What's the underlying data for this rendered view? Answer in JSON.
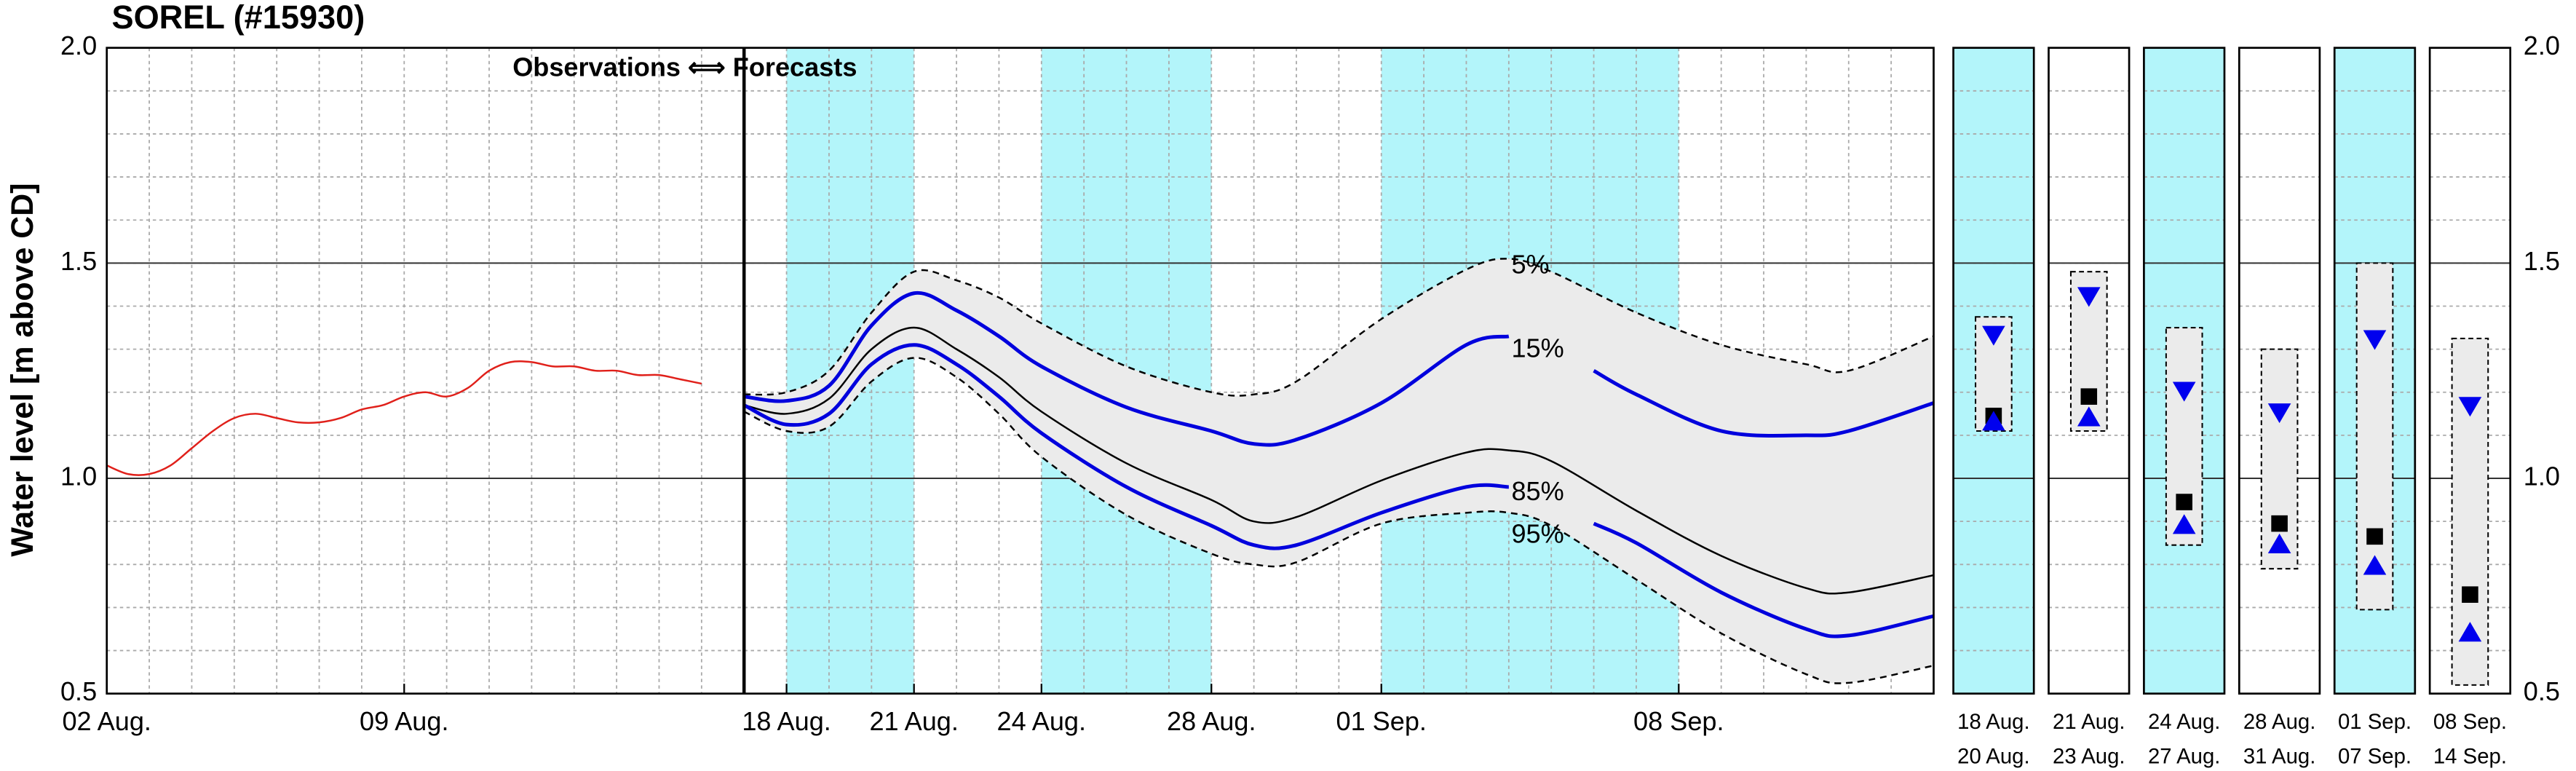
{
  "chart_data": [
    {
      "type": "line",
      "title": "SOREL (#15930)",
      "ylabel": "Water level [m above CD]",
      "annotation": "Observations ⟺ Forecasts",
      "xlim": [
        2,
        45
      ],
      "ylim": [
        0.5,
        2.0
      ],
      "xticks": [
        {
          "value": 2,
          "label": "02 Aug."
        },
        {
          "value": 9,
          "label": "09 Aug."
        },
        {
          "value": 18,
          "label": "18 Aug."
        },
        {
          "value": 21,
          "label": "21 Aug."
        },
        {
          "value": 24,
          "label": "24 Aug."
        },
        {
          "value": 28,
          "label": "28 Aug."
        },
        {
          "value": 32,
          "label": "01 Sep."
        },
        {
          "value": 39,
          "label": "08 Sep."
        }
      ],
      "yticks": [
        0.5,
        {
          "value": 1,
          "label": "1.0"
        },
        1.5,
        {
          "value": 2,
          "label": "2.0"
        }
      ],
      "grid": true,
      "minor_grid": true,
      "divider_x": 17,
      "shaded_periods": [
        [
          18,
          21
        ],
        [
          24,
          28
        ],
        [
          32,
          39
        ]
      ],
      "shade_color": "#b3f5fa",
      "band_color": "#ebebeb",
      "series": [
        {
          "color": "#e0201a",
          "x": [
            2,
            2.5,
            3,
            3.5,
            4,
            4.5,
            5,
            5.5,
            6,
            6.5,
            7,
            7.5,
            8,
            8.5,
            9,
            9.5,
            10,
            10.5,
            11,
            11.5,
            12,
            12.5,
            13,
            13.5,
            14,
            14.5,
            15,
            15.5,
            16
          ],
          "values": [
            1.03,
            1.01,
            1.01,
            1.03,
            1.07,
            1.11,
            1.14,
            1.15,
            1.14,
            1.13,
            1.13,
            1.14,
            1.16,
            1.17,
            1.19,
            1.2,
            1.19,
            1.21,
            1.25,
            1.27,
            1.27,
            1.26,
            1.26,
            1.25,
            1.25,
            1.24,
            1.24,
            1.23,
            1.22
          ]
        },
        {
          "name": "5%",
          "color": "#000000",
          "dash": true,
          "x": [
            17,
            18,
            19,
            20,
            21,
            22,
            23,
            24,
            26,
            28,
            29,
            30,
            32,
            34,
            35,
            36,
            38,
            40,
            42,
            43,
            45
          ],
          "values": [
            1.195,
            1.2,
            1.25,
            1.385,
            1.48,
            1.46,
            1.42,
            1.36,
            1.26,
            1.2,
            1.195,
            1.225,
            1.37,
            1.485,
            1.51,
            1.48,
            1.385,
            1.31,
            1.265,
            1.25,
            1.33
          ]
        },
        {
          "name": "15%",
          "color": "#0000dd",
          "x": [
            17,
            18,
            19,
            20,
            21,
            22,
            23,
            24,
            26,
            28,
            29,
            30,
            32,
            34,
            35,
            36.5,
            37,
            38,
            40,
            42,
            43,
            45
          ],
          "values": [
            1.19,
            1.18,
            1.215,
            1.355,
            1.43,
            1.39,
            1.33,
            1.26,
            1.165,
            1.11,
            1.08,
            1.09,
            1.175,
            1.31,
            1.33,
            null,
            1.25,
            1.195,
            1.11,
            1.1,
            1.11,
            1.175
          ]
        },
        {
          "color": "#000000",
          "x": [
            17,
            18,
            19,
            20,
            21,
            22,
            23,
            24,
            26,
            28,
            29,
            30,
            32,
            34,
            35,
            36,
            38,
            40,
            42,
            43,
            45
          ],
          "values": [
            1.17,
            1.15,
            1.185,
            1.3,
            1.35,
            1.3,
            1.235,
            1.155,
            1.035,
            0.95,
            0.9,
            0.91,
            0.995,
            1.06,
            1.065,
            1.04,
            0.925,
            0.82,
            0.745,
            0.735,
            0.775
          ]
        },
        {
          "name": "85%",
          "color": "#0000dd",
          "x": [
            17,
            18,
            19,
            20,
            21,
            22,
            23,
            24,
            26,
            28,
            29,
            30,
            32,
            34,
            35,
            36.5,
            37,
            38,
            40,
            42,
            43,
            45
          ],
          "values": [
            1.17,
            1.125,
            1.15,
            1.265,
            1.31,
            1.265,
            1.19,
            1.105,
            0.98,
            0.89,
            0.845,
            0.845,
            0.92,
            0.98,
            0.98,
            null,
            0.895,
            0.85,
            0.735,
            0.65,
            0.635,
            0.68
          ]
        },
        {
          "name": "95%",
          "color": "#000000",
          "dash": true,
          "x": [
            17,
            18,
            19,
            20,
            21,
            22,
            23,
            24,
            26,
            28,
            29,
            30,
            32,
            34,
            35,
            36,
            38,
            40,
            42,
            43,
            45
          ],
          "values": [
            1.155,
            1.11,
            1.12,
            1.225,
            1.28,
            1.235,
            1.15,
            1.05,
            0.915,
            0.825,
            0.8,
            0.805,
            0.895,
            0.92,
            0.92,
            0.89,
            0.765,
            0.64,
            0.545,
            0.525,
            0.565
          ]
        }
      ]
    },
    {
      "type": "range",
      "ylim": [
        0.5,
        2.0
      ],
      "yticks": [
        0.5,
        {
          "value": 1,
          "label": "1.0"
        },
        1.5,
        {
          "value": 2,
          "label": "2.0"
        }
      ],
      "grid": true,
      "minor_grid": true,
      "categories": [
        [
          "18 Aug.",
          "20 Aug."
        ],
        [
          "21 Aug.",
          "23 Aug."
        ],
        [
          "24 Aug.",
          "27 Aug."
        ],
        [
          "28 Aug.",
          "31 Aug."
        ],
        [
          "01 Sep.",
          "07 Sep."
        ],
        [
          "08 Sep.",
          "14 Sep."
        ]
      ],
      "shaded": [
        true,
        false,
        true,
        false,
        true,
        false
      ],
      "shade_color": "#b3f5fa",
      "range_color": "#ebebeb",
      "marker_color": "#0000ee",
      "median_color": "#000000",
      "range_high": [
        1.375,
        1.48,
        1.35,
        1.3,
        1.5,
        1.325
      ],
      "upper": [
        1.335,
        1.425,
        1.205,
        1.155,
        1.325,
        1.17
      ],
      "median": [
        1.145,
        1.19,
        0.945,
        0.895,
        0.865,
        0.73
      ],
      "lower": [
        1.13,
        1.14,
        0.89,
        0.845,
        0.795,
        0.64
      ],
      "range_low": [
        1.11,
        1.11,
        0.845,
        0.79,
        0.695,
        0.52
      ]
    }
  ]
}
